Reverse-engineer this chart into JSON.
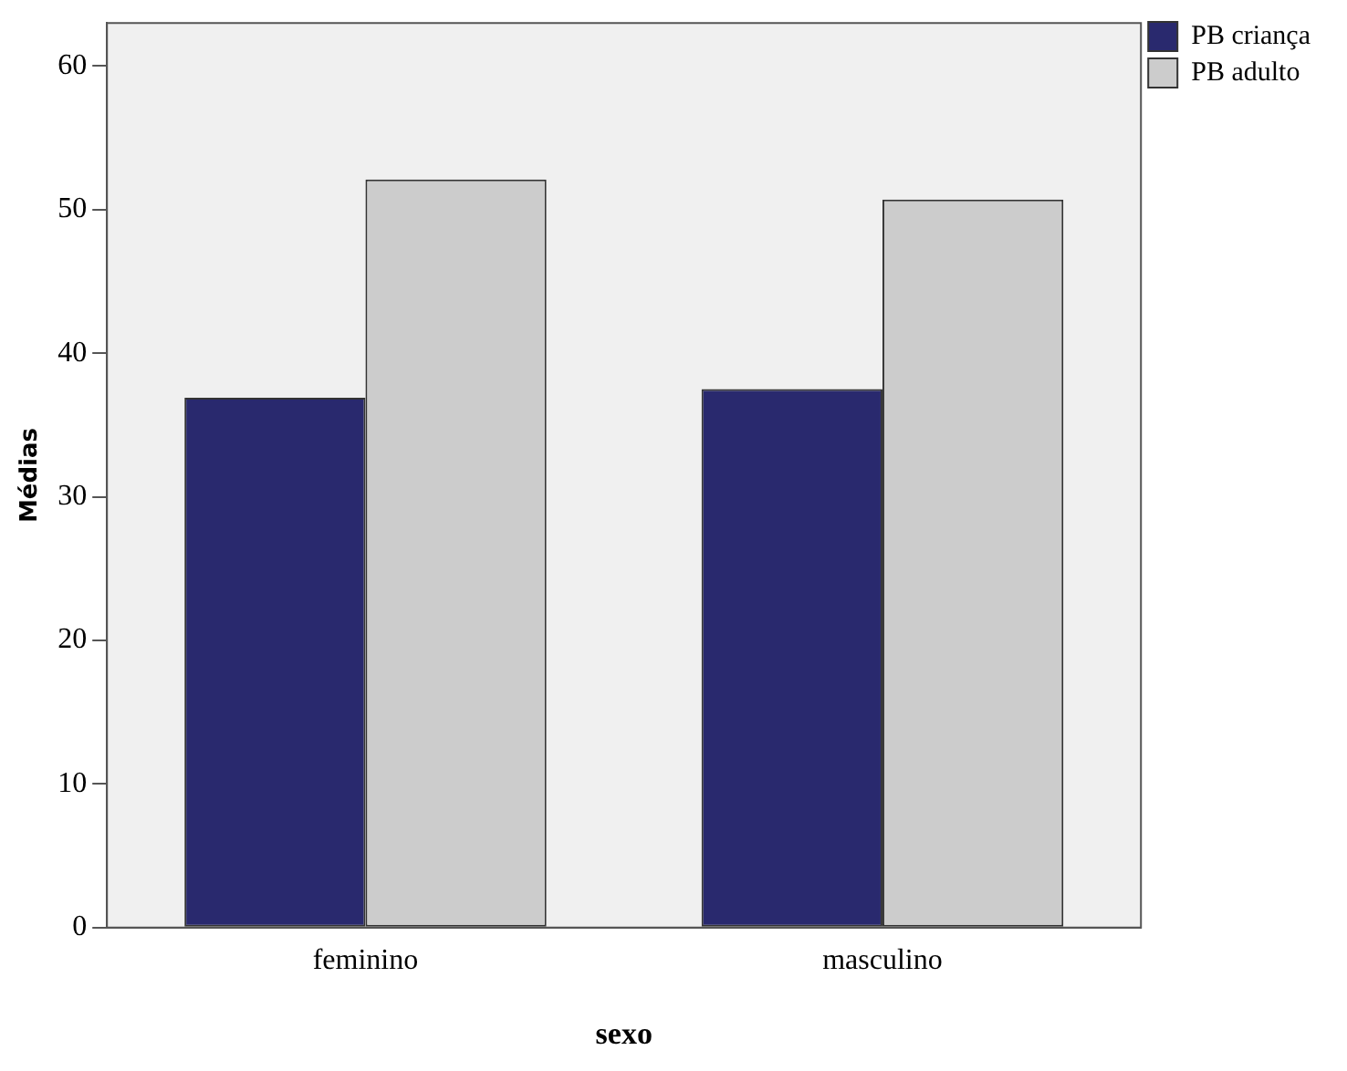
{
  "chart_data": {
    "type": "bar",
    "xlabel": "sexo",
    "ylabel": "Médias",
    "categories": [
      "feminino",
      "masculino"
    ],
    "series": [
      {
        "name": "PB criança",
        "color": "#29296e",
        "values": [
          36.9,
          37.5
        ]
      },
      {
        "name": "PB adulto",
        "color": "#cccccc",
        "values": [
          52.1,
          50.7
        ]
      }
    ],
    "ylim": [
      0,
      63
    ],
    "yticks": [
      0,
      10,
      20,
      30,
      40,
      50,
      60
    ],
    "grid": false,
    "legend": "top right"
  }
}
